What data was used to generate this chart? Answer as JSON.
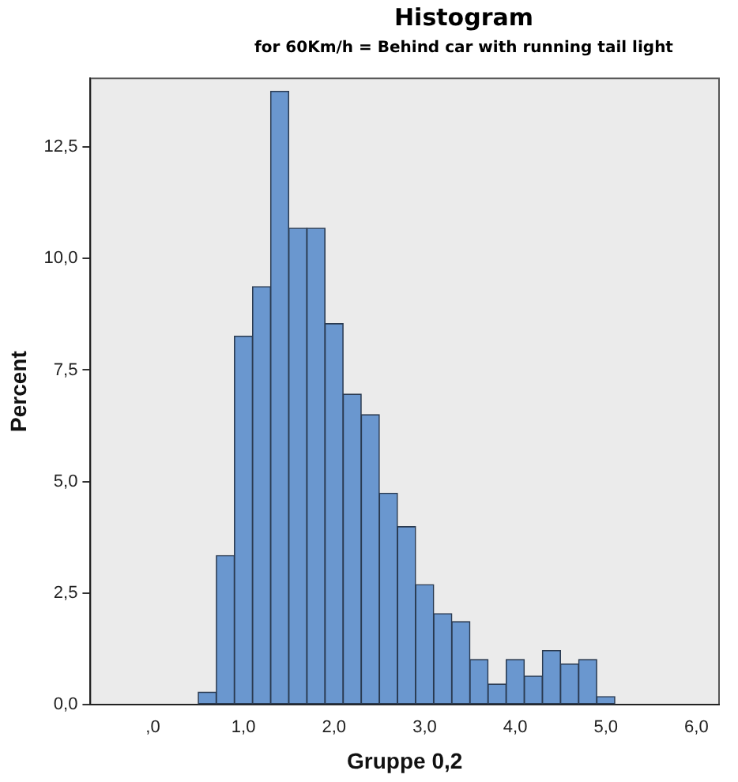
{
  "chart_data": {
    "type": "histogram",
    "title": "Histogram",
    "subtitle": "for 60Km/h = Behind car with running tail light",
    "xlabel": "Gruppe 0,2",
    "ylabel": "Percent",
    "bins": [
      0.5,
      0.7,
      0.9,
      1.1,
      1.3,
      1.5,
      1.7,
      1.9,
      2.1,
      2.3,
      2.5,
      2.7,
      2.9,
      3.1,
      3.3,
      3.5,
      3.7,
      3.9,
      4.1,
      4.3,
      4.5,
      4.7,
      4.9,
      5.1
    ],
    "values": [
      0.28,
      3.34,
      8.26,
      9.37,
      13.75,
      10.68,
      10.68,
      8.54,
      6.96,
      6.5,
      4.74,
      3.99,
      2.69,
      2.04,
      1.86,
      1.01,
      0.46,
      1.01,
      0.64,
      1.21,
      0.91,
      1.01,
      0.18
    ],
    "color": "#6a97cf",
    "xlim": [
      -0.69,
      6.25
    ],
    "ylim": [
      0,
      14.04
    ],
    "xticks": [
      {
        "value": 0,
        "label": ",0"
      },
      {
        "value": 1,
        "label": "1,0"
      },
      {
        "value": 2,
        "label": "2,0"
      },
      {
        "value": 3,
        "label": "3,0"
      },
      {
        "value": 4,
        "label": "4,0"
      },
      {
        "value": 5,
        "label": "5,0"
      },
      {
        "value": 6,
        "label": "6,0"
      }
    ],
    "yticks": [
      {
        "value": 0,
        "label": "0,0"
      },
      {
        "value": 2.5,
        "label": "2,5"
      },
      {
        "value": 5,
        "label": "5,0"
      },
      {
        "value": 7.5,
        "label": "7,5"
      },
      {
        "value": 10,
        "label": "10,0"
      },
      {
        "value": 12.5,
        "label": "12,5"
      }
    ],
    "grid": false,
    "legend": false
  }
}
